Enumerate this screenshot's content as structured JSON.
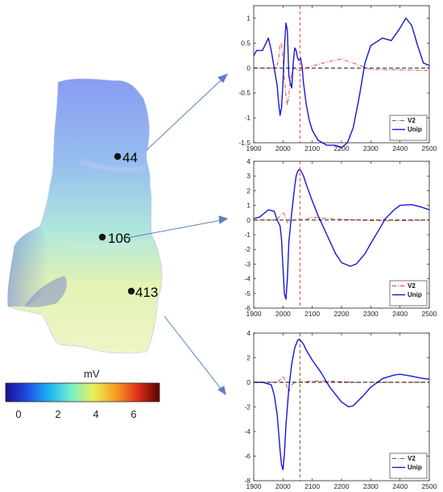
{
  "map": {
    "points": [
      {
        "label": "44",
        "color": "#e0263a"
      },
      {
        "label": "106",
        "color": "#e0263a"
      },
      {
        "label": "413",
        "color": "#8b1a1a"
      }
    ],
    "colorbar": {
      "unit": "mV",
      "ticks": [
        "0",
        "2",
        "4",
        "6"
      ],
      "colors": [
        "#1a0f8c",
        "#1f4fe6",
        "#1fb5f0",
        "#7af0c8",
        "#e8f05a",
        "#f5a020",
        "#e0301a",
        "#5c0000"
      ]
    }
  },
  "chart_data": [
    {
      "type": "line",
      "title": "",
      "xlabel": "",
      "ylabel": "",
      "xlim": [
        1900,
        2500
      ],
      "ylim": [
        -1.5,
        1.25
      ],
      "xticks": [
        1900,
        2000,
        2100,
        2200,
        2300,
        2400,
        2500
      ],
      "yticks": [
        -1.5,
        -1,
        -0.5,
        0,
        0.5,
        1
      ],
      "ytick_labels": [
        "-1.5",
        "-1",
        "-0.5",
        "0",
        "0.5",
        "1"
      ],
      "vline_x": 2058,
      "vline_color": "#e8392c",
      "legend": "bottom-right",
      "series": [
        {
          "name": "V2",
          "color": "#e8392c",
          "style": "dash-dot",
          "x": [
            1900,
            1950,
            1970,
            1980,
            1985,
            1990,
            1995,
            2000,
            2005,
            2010,
            2015,
            2020,
            2025,
            2030,
            2035,
            2040,
            2045,
            2050,
            2060,
            2080,
            2100,
            2150,
            2200,
            2240,
            2300,
            2400,
            2500
          ],
          "y": [
            0,
            0,
            0,
            0.05,
            0.2,
            0.45,
            0.5,
            0.2,
            -0.2,
            -0.55,
            -0.75,
            -0.55,
            -0.25,
            -0.1,
            -0.02,
            0,
            -0.02,
            -0.05,
            -0.05,
            0,
            0.04,
            0.12,
            0.18,
            0.1,
            -0.03,
            -0.04,
            -0.05
          ]
        },
        {
          "name": "Unip",
          "color": "#1616d6",
          "style": "solid",
          "x": [
            1900,
            1910,
            1930,
            1950,
            1960,
            1970,
            1980,
            1985,
            1990,
            1995,
            2000,
            2005,
            2010,
            2015,
            2020,
            2025,
            2030,
            2035,
            2040,
            2045,
            2050,
            2055,
            2060,
            2065,
            2070,
            2080,
            2090,
            2100,
            2120,
            2150,
            2180,
            2200,
            2220,
            2240,
            2260,
            2280,
            2300,
            2340,
            2370,
            2400,
            2420,
            2440,
            2460,
            2480,
            2500
          ],
          "y": [
            0.25,
            0.35,
            0.35,
            0.6,
            0.35,
            0,
            -0.35,
            -0.7,
            -0.95,
            -0.8,
            -0.3,
            0.4,
            0.9,
            0.75,
            -0.15,
            -0.3,
            -0.4,
            0.1,
            0.4,
            0.35,
            0.2,
            0.15,
            0.2,
            0.05,
            -0.3,
            -0.75,
            -1.05,
            -1.25,
            -1.45,
            -1.55,
            -1.55,
            -1.6,
            -1.5,
            -1.2,
            -0.6,
            0.1,
            0.45,
            0.6,
            0.55,
            0.8,
            1.0,
            0.85,
            0.45,
            0.1,
            0.05
          ]
        },
        {
          "name": "",
          "color": "#000000",
          "style": "dashed",
          "x": [
            1900,
            2500
          ],
          "y": [
            0,
            0
          ]
        }
      ]
    },
    {
      "type": "line",
      "title": "",
      "xlabel": "",
      "ylabel": "",
      "xlim": [
        1900,
        2500
      ],
      "ylim": [
        -6,
        4
      ],
      "xticks": [
        1900,
        2000,
        2100,
        2200,
        2300,
        2400,
        2500
      ],
      "yticks": [
        -6,
        -5,
        -4,
        -3,
        -2,
        -1,
        0,
        1,
        2,
        3,
        4
      ],
      "ytick_labels": [
        "-6",
        "-5",
        "-4",
        "-3",
        "-2",
        "-1",
        "0",
        "1",
        "2",
        "3",
        "4"
      ],
      "vline_x": 2058,
      "vline_color": "#e8392c",
      "legend": "bottom-right",
      "series": [
        {
          "name": "V2",
          "color": "#e8392c",
          "style": "dash-dot",
          "x": [
            1900,
            1950,
            1980,
            1990,
            2000,
            2005,
            2010,
            2015,
            2020,
            2025,
            2030,
            2040,
            2060,
            2080,
            2100,
            2150,
            2200,
            2250,
            2300,
            2400,
            2500
          ],
          "y": [
            0,
            0,
            0,
            0.3,
            0.5,
            0.4,
            0.1,
            -0.2,
            -0.1,
            0,
            -0.05,
            0,
            0,
            0.05,
            0.2,
            0.1,
            0.05,
            0,
            -0.05,
            -0.05,
            0
          ]
        },
        {
          "name": "Unip",
          "color": "#1616d6",
          "style": "solid",
          "x": [
            1900,
            1920,
            1950,
            1970,
            1980,
            1985,
            1990,
            1995,
            2000,
            2005,
            2010,
            2015,
            2020,
            2030,
            2040,
            2045,
            2050,
            2055,
            2060,
            2070,
            2080,
            2100,
            2120,
            2150,
            2180,
            2200,
            2230,
            2250,
            2280,
            2300,
            2330,
            2350,
            2380,
            2400,
            2440,
            2470,
            2500
          ],
          "y": [
            0.1,
            0.2,
            0.7,
            0.6,
            0,
            -0.2,
            -0.4,
            -1.3,
            -3.2,
            -5.0,
            -5.4,
            -4.0,
            -1.5,
            0.5,
            2.3,
            3.0,
            3.3,
            3.45,
            3.4,
            3.0,
            2.4,
            1.3,
            0.3,
            -1.0,
            -2.3,
            -2.9,
            -3.15,
            -3.0,
            -2.3,
            -1.6,
            -0.6,
            0.1,
            0.7,
            1.0,
            1.05,
            0.9,
            0.7
          ]
        },
        {
          "name": "",
          "color": "#000000",
          "style": "dashed",
          "x": [
            1900,
            2500
          ],
          "y": [
            0,
            0
          ]
        }
      ]
    },
    {
      "type": "line",
      "title": "",
      "xlabel": "",
      "ylabel": "",
      "xlim": [
        1900,
        2500
      ],
      "ylim": [
        -8,
        4
      ],
      "xticks": [
        1900,
        2000,
        2100,
        2200,
        2300,
        2400,
        2500
      ],
      "yticks": [
        -8,
        -6,
        -4,
        -2,
        0,
        2,
        4
      ],
      "ytick_labels": [
        "-8",
        "-6",
        "-4",
        "-2",
        "0",
        "2",
        "4"
      ],
      "vline_x": 2058,
      "vline_color": "#8b4513",
      "legend": "bottom-right",
      "series": [
        {
          "name": "V2",
          "color": "#c0392b",
          "style": "dash-dot",
          "x": [
            1900,
            1950,
            1980,
            1990,
            2000,
            2005,
            2010,
            2015,
            2020,
            2025,
            2030,
            2040,
            2060,
            2080,
            2100,
            2150,
            2200,
            2250,
            2300,
            2400,
            2500
          ],
          "y": [
            0,
            0,
            0,
            0.2,
            0.5,
            0.3,
            0,
            -0.5,
            -0.8,
            -0.5,
            -0.2,
            0,
            0,
            0.05,
            0.1,
            0.1,
            0.05,
            0,
            0,
            0,
            0
          ]
        },
        {
          "name": "Unip",
          "color": "#1616d6",
          "style": "solid",
          "x": [
            1900,
            1930,
            1960,
            1970,
            1980,
            1990,
            1995,
            2000,
            2005,
            2010,
            2020,
            2030,
            2040,
            2050,
            2055,
            2060,
            2070,
            2080,
            2100,
            2130,
            2160,
            2200,
            2225,
            2240,
            2270,
            2300,
            2340,
            2380,
            2400,
            2440,
            2470,
            2500
          ],
          "y": [
            0,
            0,
            -0.2,
            -1.0,
            -2.6,
            -5.5,
            -6.7,
            -7.1,
            -5.8,
            -3.5,
            -0.5,
            1.5,
            2.8,
            3.4,
            3.5,
            3.4,
            3.1,
            2.6,
            1.8,
            0.8,
            -0.4,
            -1.6,
            -2.0,
            -1.9,
            -1.2,
            -0.4,
            0.3,
            0.6,
            0.65,
            0.5,
            0.35,
            0.25
          ]
        },
        {
          "name": "",
          "color": "#000000",
          "style": "dashed",
          "x": [
            1900,
            2500
          ],
          "y": [
            0,
            0
          ]
        }
      ]
    }
  ]
}
